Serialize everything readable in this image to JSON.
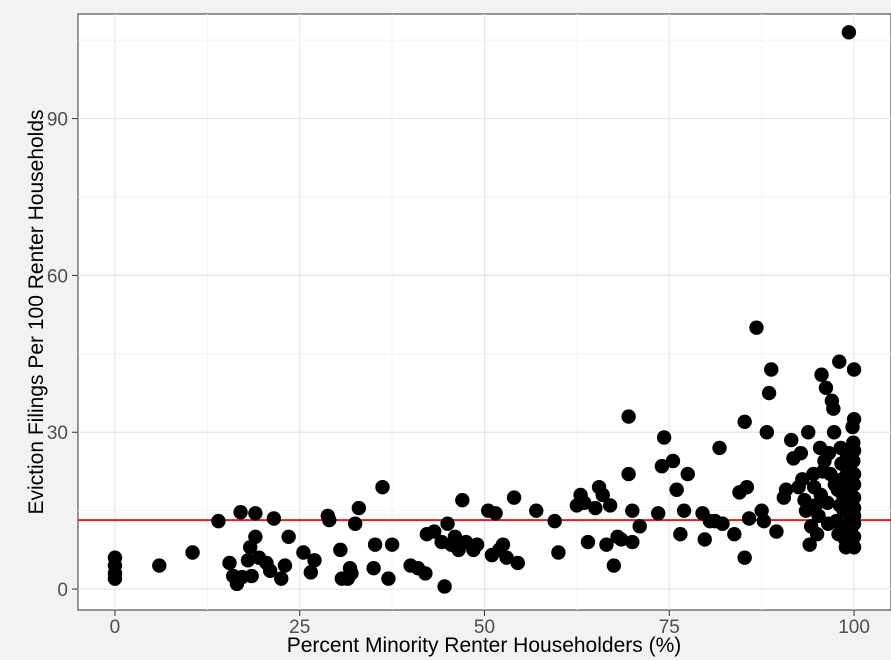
{
  "chart_data": {
    "type": "scatter",
    "xlabel": "Percent Minority Renter Householders (%)",
    "ylabel": "Eviction Filings Per 100 Renter Households",
    "xlim": [
      -5,
      105
    ],
    "ylim": [
      -4,
      110
    ],
    "x_ticks": [
      0,
      25,
      50,
      75,
      100
    ],
    "x_tick_labels": [
      "0",
      "25",
      "50",
      "75",
      "100"
    ],
    "y_ticks": [
      0,
      30,
      60,
      90
    ],
    "y_tick_labels": [
      "0",
      "30",
      "60",
      "90"
    ],
    "grid": true,
    "legend": "none",
    "reference_line": {
      "y": 13.2,
      "color": "#e41a1c"
    },
    "point_color": "#000000",
    "points": [
      [
        0,
        6
      ],
      [
        0,
        4.5
      ],
      [
        0,
        3
      ],
      [
        0,
        2
      ],
      [
        6,
        4.5
      ],
      [
        10.5,
        7
      ],
      [
        14,
        13
      ],
      [
        15.5,
        5
      ],
      [
        16,
        2.5
      ],
      [
        16.5,
        1
      ],
      [
        17,
        14.7
      ],
      [
        17.2,
        2.3
      ],
      [
        18,
        5.5
      ],
      [
        18.3,
        8
      ],
      [
        18.5,
        2.5
      ],
      [
        19,
        10
      ],
      [
        19,
        14.5
      ],
      [
        19.5,
        6
      ],
      [
        20.5,
        5
      ],
      [
        21,
        3.5
      ],
      [
        21.5,
        13.5
      ],
      [
        22.5,
        2
      ],
      [
        23,
        4.5
      ],
      [
        23.5,
        10
      ],
      [
        25.5,
        7
      ],
      [
        26.5,
        3.2
      ],
      [
        27,
        5.5
      ],
      [
        28.8,
        14
      ],
      [
        29,
        13.2
      ],
      [
        30.5,
        7.5
      ],
      [
        30.7,
        2
      ],
      [
        31.5,
        2
      ],
      [
        31.8,
        4
      ],
      [
        32,
        3
      ],
      [
        32.5,
        12.5
      ],
      [
        33,
        15.5
      ],
      [
        35,
        4
      ],
      [
        35.2,
        8.5
      ],
      [
        36.2,
        19.5
      ],
      [
        37,
        2
      ],
      [
        37.5,
        8.5
      ],
      [
        40,
        4.5
      ],
      [
        41,
        4
      ],
      [
        42,
        3
      ],
      [
        42.2,
        10.5
      ],
      [
        43.2,
        11
      ],
      [
        44.2,
        9
      ],
      [
        44.6,
        0.5
      ],
      [
        45,
        12.5
      ],
      [
        45.5,
        8.5
      ],
      [
        46,
        10
      ],
      [
        46.5,
        7.5
      ],
      [
        47,
        17
      ],
      [
        47.5,
        9
      ],
      [
        48.5,
        7.5
      ],
      [
        49,
        8.5
      ],
      [
        50.5,
        15
      ],
      [
        51,
        6.5
      ],
      [
        51.5,
        14.5
      ],
      [
        52,
        7.5
      ],
      [
        52.5,
        8.5
      ],
      [
        53,
        6
      ],
      [
        54,
        17.5
      ],
      [
        54.5,
        5
      ],
      [
        57,
        15
      ],
      [
        59.5,
        13
      ],
      [
        60,
        7
      ],
      [
        62.5,
        16
      ],
      [
        63,
        18
      ],
      [
        63.5,
        16.5
      ],
      [
        64,
        9
      ],
      [
        65,
        15.5
      ],
      [
        65.5,
        19.5
      ],
      [
        66,
        18
      ],
      [
        66.5,
        8.5
      ],
      [
        67,
        16
      ],
      [
        67.5,
        4.5
      ],
      [
        68,
        10
      ],
      [
        68.5,
        9.5
      ],
      [
        69.5,
        33
      ],
      [
        69.5,
        22
      ],
      [
        70,
        15
      ],
      [
        70,
        9
      ],
      [
        71,
        12
      ],
      [
        73.5,
        14.5
      ],
      [
        74,
        23.5
      ],
      [
        74.3,
        29
      ],
      [
        75.5,
        24.5
      ],
      [
        76,
        19
      ],
      [
        76.5,
        10.5
      ],
      [
        77,
        15
      ],
      [
        77.5,
        22
      ],
      [
        79.5,
        14.5
      ],
      [
        79.8,
        9.5
      ],
      [
        80.5,
        13
      ],
      [
        81.2,
        13
      ],
      [
        81.8,
        27
      ],
      [
        82.2,
        12.5
      ],
      [
        83.8,
        10.5
      ],
      [
        84.5,
        18.5
      ],
      [
        85.2,
        32
      ],
      [
        85.2,
        6
      ],
      [
        85.5,
        19.5
      ],
      [
        85.8,
        13.5
      ],
      [
        86.8,
        50
      ],
      [
        87.5,
        15
      ],
      [
        87.8,
        13
      ],
      [
        88.2,
        30
      ],
      [
        88.5,
        37.5
      ],
      [
        88.8,
        42
      ],
      [
        89.5,
        11
      ],
      [
        90.5,
        17.5
      ],
      [
        90.8,
        19
      ],
      [
        91.5,
        28.5
      ],
      [
        91.8,
        25
      ],
      [
        92.5,
        19.5
      ],
      [
        92.8,
        26
      ],
      [
        93,
        21
      ],
      [
        93.3,
        17
      ],
      [
        93.5,
        15
      ],
      [
        93.8,
        30
      ],
      [
        94,
        8.5
      ],
      [
        94.2,
        12
      ],
      [
        94.5,
        22
      ],
      [
        94.6,
        19.5
      ],
      [
        94.8,
        16
      ],
      [
        95,
        10.5
      ],
      [
        95.2,
        14
      ],
      [
        95.4,
        27
      ],
      [
        95.5,
        18
      ],
      [
        95.6,
        41
      ],
      [
        95.8,
        22.5
      ],
      [
        96,
        24.5
      ],
      [
        96.2,
        38.5
      ],
      [
        96.4,
        16.5
      ],
      [
        96.5,
        12.5
      ],
      [
        96.6,
        26
      ],
      [
        96.8,
        22
      ],
      [
        97,
        36
      ],
      [
        97.2,
        34.5
      ],
      [
        97.3,
        30
      ],
      [
        97.4,
        20
      ],
      [
        97.6,
        13
      ],
      [
        97.8,
        19
      ],
      [
        97.9,
        10.5
      ],
      [
        98,
        43.5
      ],
      [
        98.1,
        16
      ],
      [
        98.2,
        27
      ],
      [
        98.3,
        24
      ],
      [
        98.4,
        21
      ],
      [
        98.5,
        18
      ],
      [
        98.6,
        15
      ],
      [
        98.7,
        12
      ],
      [
        98.8,
        9.5
      ],
      [
        98.9,
        8
      ],
      [
        99,
        26
      ],
      [
        99.1,
        22.5
      ],
      [
        99.2,
        19
      ],
      [
        99.3,
        106.5
      ],
      [
        99.4,
        16.5
      ],
      [
        99.5,
        13.5
      ],
      [
        99.6,
        11
      ],
      [
        99.7,
        9
      ],
      [
        99.8,
        31
      ],
      [
        99.9,
        28
      ],
      [
        99.9,
        24.5
      ],
      [
        100,
        42
      ],
      [
        100,
        32.5
      ],
      [
        100,
        20
      ],
      [
        100,
        17.5
      ],
      [
        100,
        15.5
      ],
      [
        100,
        12.5
      ],
      [
        100,
        10
      ],
      [
        100,
        8
      ],
      [
        100,
        22
      ],
      [
        100,
        26.5
      ],
      [
        100,
        14
      ]
    ]
  }
}
